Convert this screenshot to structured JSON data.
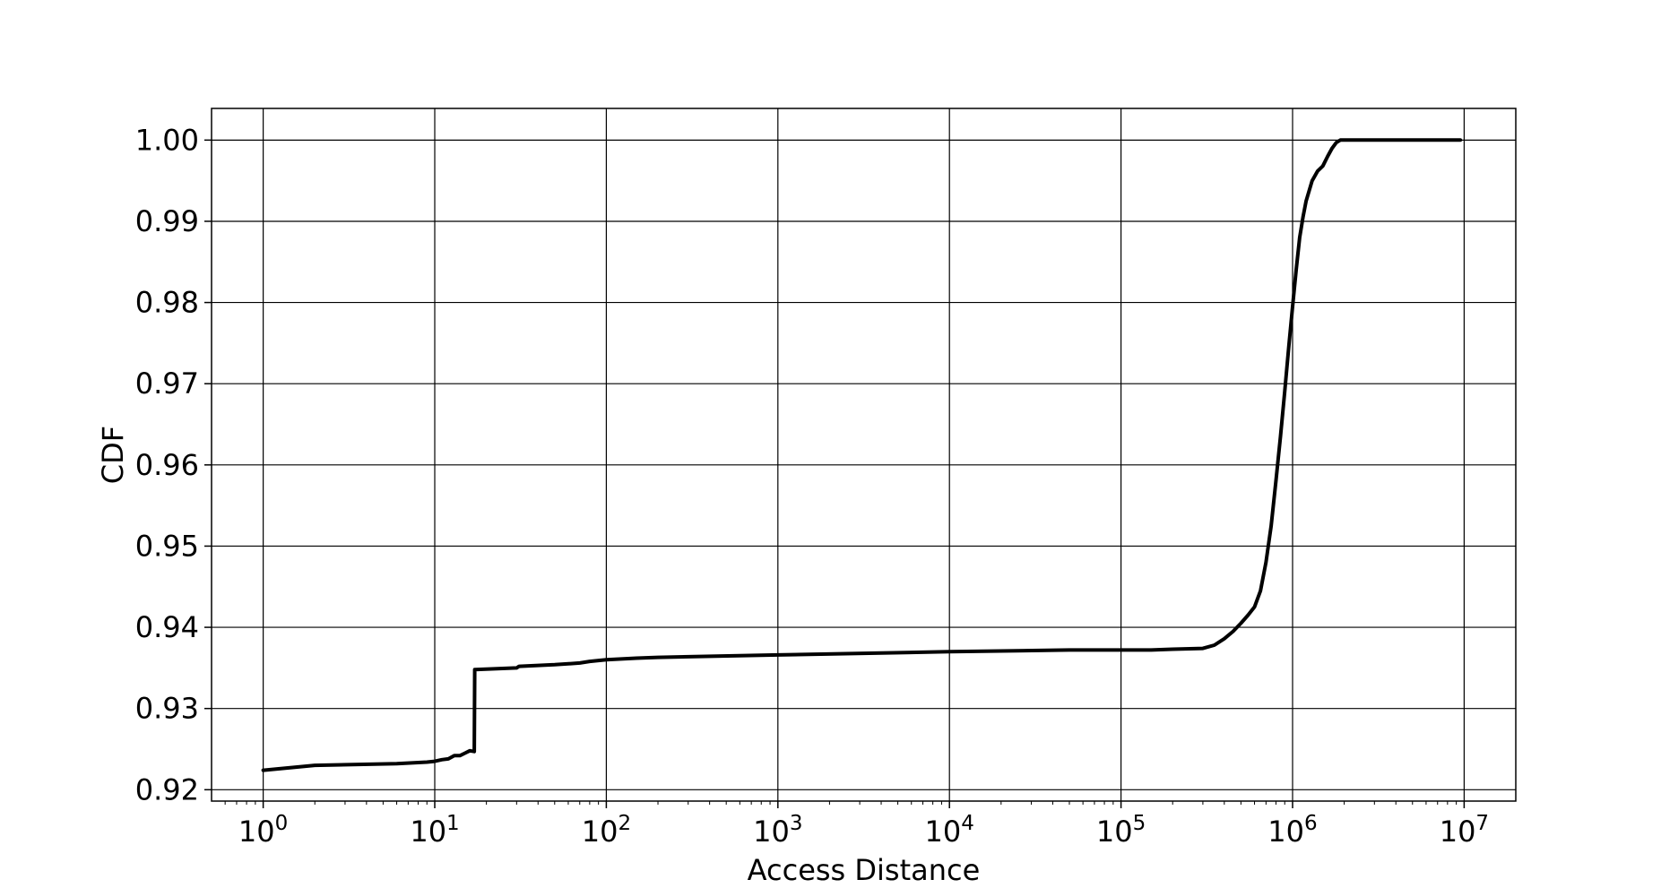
{
  "chart_data": {
    "type": "line",
    "title": "",
    "xlabel": "Access Distance",
    "ylabel": "CDF",
    "xscale": "log",
    "xlim": [
      0.5,
      20000000
    ],
    "ylim": [
      0.9186,
      1.0039
    ],
    "grid": true,
    "legend": "none",
    "colors": {
      "line": "#000000",
      "grid": "#000000",
      "background": "#ffffff"
    },
    "x_ticks": [
      {
        "value": 1,
        "base": "10",
        "exp": "0"
      },
      {
        "value": 10,
        "base": "10",
        "exp": "1"
      },
      {
        "value": 100,
        "base": "10",
        "exp": "2"
      },
      {
        "value": 1000,
        "base": "10",
        "exp": "3"
      },
      {
        "value": 10000,
        "base": "10",
        "exp": "4"
      },
      {
        "value": 100000,
        "base": "10",
        "exp": "5"
      },
      {
        "value": 1000000,
        "base": "10",
        "exp": "6"
      },
      {
        "value": 10000000,
        "base": "10",
        "exp": "7"
      }
    ],
    "y_ticks": [
      {
        "value": 0.92,
        "label": "0.92"
      },
      {
        "value": 0.93,
        "label": "0.93"
      },
      {
        "value": 0.94,
        "label": "0.94"
      },
      {
        "value": 0.95,
        "label": "0.95"
      },
      {
        "value": 0.96,
        "label": "0.96"
      },
      {
        "value": 0.97,
        "label": "0.97"
      },
      {
        "value": 0.98,
        "label": "0.98"
      },
      {
        "value": 0.99,
        "label": "0.99"
      },
      {
        "value": 1.0,
        "label": "1.00"
      }
    ],
    "series": [
      {
        "x": [
          1,
          2,
          6,
          9,
          10,
          11,
          12,
          13,
          14,
          15,
          16,
          17,
          17.1,
          30,
          31,
          50,
          70,
          80,
          100,
          150,
          200,
          1000,
          10000,
          50000,
          150000,
          200000,
          300000,
          350000,
          400000,
          450000,
          500000,
          550000,
          600000,
          650000,
          700000,
          750000,
          800000,
          850000,
          900000,
          950000,
          1000000,
          1050000,
          1100000,
          1150000,
          1200000,
          1300000,
          1400000,
          1500000,
          1600000,
          1700000,
          1800000,
          1900000,
          2000000,
          2100000,
          2200000,
          3000000,
          5000000,
          9500000
        ],
        "y": [
          0.9224,
          0.923,
          0.9232,
          0.9234,
          0.9235,
          0.9237,
          0.9238,
          0.9242,
          0.9242,
          0.9245,
          0.9248,
          0.9247,
          0.9348,
          0.935,
          0.9352,
          0.9354,
          0.9356,
          0.9358,
          0.936,
          0.9362,
          0.9363,
          0.9366,
          0.937,
          0.9372,
          0.9372,
          0.9373,
          0.9374,
          0.9378,
          0.9386,
          0.9395,
          0.9405,
          0.9415,
          0.9425,
          0.9445,
          0.948,
          0.9525,
          0.958,
          0.9635,
          0.969,
          0.9745,
          0.9795,
          0.984,
          0.988,
          0.9905,
          0.9925,
          0.995,
          0.9962,
          0.9968,
          0.998,
          0.999,
          0.9997,
          1.0,
          1.0,
          1.0,
          1.0,
          1.0,
          1.0,
          1.0
        ]
      }
    ]
  }
}
